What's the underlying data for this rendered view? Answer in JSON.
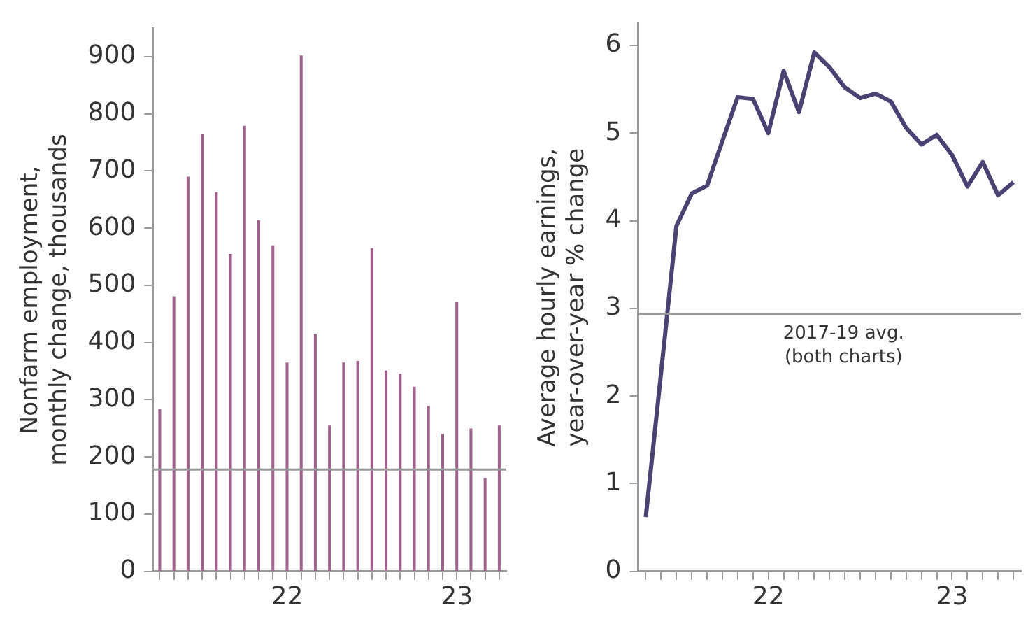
{
  "chart_data": [
    {
      "type": "bar",
      "ylabel": "Nonfarm employment,\nmonthly change, thousands",
      "categories": [
        null,
        null,
        null,
        null,
        null,
        null,
        null,
        null,
        null,
        "22",
        null,
        null,
        null,
        null,
        null,
        null,
        null,
        null,
        null,
        null,
        null,
        "23",
        null,
        null,
        null
      ],
      "values": [
        284,
        481,
        690,
        764,
        663,
        555,
        779,
        614,
        570,
        365,
        902,
        415,
        255,
        365,
        368,
        565,
        351,
        346,
        323,
        289,
        240,
        471,
        250,
        163,
        255
      ],
      "color": "#a0608c",
      "ylim": [
        0,
        950
      ],
      "yticks": [
        0,
        100,
        200,
        300,
        400,
        500,
        600,
        700,
        800,
        900
      ],
      "grid": false,
      "ref_lines": [
        {
          "axis": "y",
          "value": 178,
          "color": "#999999"
        }
      ]
    },
    {
      "type": "line",
      "ylabel": "Average hourly earnings,\nyear-over-year % change",
      "categories": [
        null,
        null,
        null,
        null,
        null,
        null,
        null,
        null,
        "22",
        null,
        null,
        null,
        null,
        null,
        null,
        null,
        null,
        null,
        null,
        null,
        "23",
        null,
        null,
        null,
        null
      ],
      "values": [
        0.62,
        2.27,
        3.94,
        4.31,
        4.4,
        4.91,
        5.41,
        5.39,
        5.0,
        5.71,
        5.24,
        5.92,
        5.75,
        5.52,
        5.4,
        5.45,
        5.36,
        5.06,
        4.87,
        4.98,
        4.75,
        4.39,
        4.67,
        4.29,
        4.44
      ],
      "color": "#4a4272",
      "ylim": [
        0,
        6.25
      ],
      "yticks": [
        0,
        1,
        2,
        3,
        4,
        5,
        6
      ],
      "grid": false,
      "marker": "none",
      "ref_lines": [
        {
          "axis": "y",
          "value": 2.94,
          "color": "#999999",
          "label": "2017-19 avg.\n(both charts)"
        }
      ]
    }
  ]
}
